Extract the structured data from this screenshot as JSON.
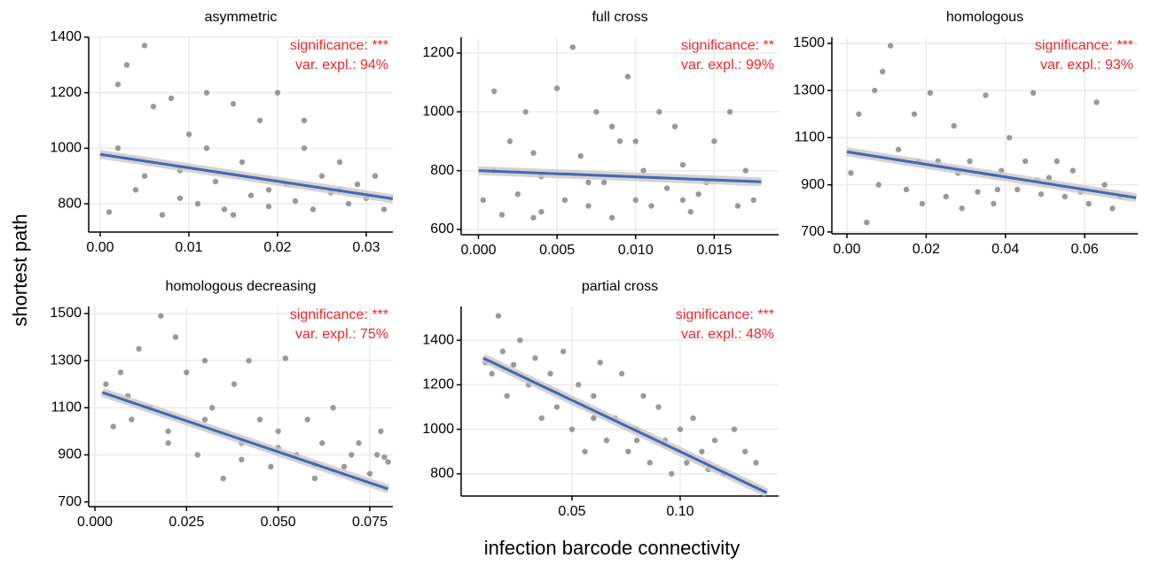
{
  "axis_labels": {
    "x": "infection barcode connectivity",
    "y": "shortest path"
  },
  "chart_data": [
    {
      "type": "scatter",
      "title": "asymmetric",
      "color": "#999999",
      "grid": true,
      "annotations": [
        "significance: ***",
        "var. expl.: 94%"
      ],
      "annotation_color": "#e8262b",
      "x": [
        0.001,
        0.002,
        0.003,
        0.004,
        0.005,
        0.006,
        0.007,
        0.008,
        0.009,
        0.01,
        0.011,
        0.012,
        0.013,
        0.014,
        0.015,
        0.016,
        0.017,
        0.018,
        0.019,
        0.02,
        0.021,
        0.022,
        0.023,
        0.024,
        0.025,
        0.026,
        0.027,
        0.028,
        0.029,
        0.03,
        0.031,
        0.032,
        0.002,
        0.005,
        0.009,
        0.012,
        0.015,
        0.019,
        0.023,
        0.027
      ],
      "y": [
        770,
        1230,
        1300,
        850,
        1370,
        1150,
        760,
        1180,
        920,
        1050,
        800,
        1200,
        880,
        780,
        1160,
        950,
        830,
        1100,
        790,
        1200,
        870,
        810,
        1000,
        780,
        900,
        840,
        950,
        800,
        870,
        820,
        900,
        780,
        1000,
        900,
        820,
        1000,
        760,
        850,
        1100,
        850
      ],
      "fit": {
        "color": "#4466b0",
        "x": [
          0.0,
          0.033
        ],
        "y": [
          978,
          818
        ]
      },
      "xlim": [
        -0.0013,
        0.033
      ],
      "ylim": [
        698,
        1400
      ],
      "xticks": [
        {
          "value": 0,
          "label": "0.00"
        },
        0.01,
        0.02,
        0.03
      ],
      "yticks": [
        800,
        1000,
        1200,
        1400
      ]
    },
    {
      "type": "scatter",
      "title": "full cross",
      "color": "#999999",
      "grid": true,
      "annotations": [
        "significance: **",
        "var. expl.: 99%"
      ],
      "annotation_color": "#e8262b",
      "x": [
        0.0003,
        0.001,
        0.0015,
        0.002,
        0.0025,
        0.003,
        0.0035,
        0.004,
        0.005,
        0.0055,
        0.006,
        0.0065,
        0.007,
        0.0075,
        0.008,
        0.0085,
        0.009,
        0.0095,
        0.01,
        0.0105,
        0.011,
        0.0115,
        0.012,
        0.0125,
        0.013,
        0.0135,
        0.014,
        0.015,
        0.016,
        0.017,
        0.0175,
        0.001,
        0.004,
        0.007,
        0.01,
        0.013,
        0.0035,
        0.0085,
        0.0145,
        0.0165
      ],
      "y": [
        700,
        1070,
        650,
        900,
        720,
        1000,
        640,
        780,
        1080,
        700,
        1220,
        850,
        680,
        1000,
        760,
        640,
        900,
        1120,
        700,
        800,
        680,
        1000,
        740,
        950,
        820,
        660,
        720,
        900,
        1000,
        800,
        700,
        800,
        660,
        760,
        900,
        700,
        860,
        950,
        760,
        680
      ],
      "fit": {
        "color": "#4466b0",
        "x": [
          0.0,
          0.018
        ],
        "y": [
          800,
          762
        ]
      },
      "xlim": [
        -0.0011,
        0.0191
      ],
      "ylim": [
        582,
        1254
      ],
      "xticks": [
        {
          "value": 0,
          "label": "0.000"
        },
        0.005,
        {
          "value": 0.01,
          "label": "0.010"
        },
        0.015
      ],
      "yticks": [
        600,
        800,
        1000,
        1200
      ]
    },
    {
      "type": "scatter",
      "title": "homologous",
      "color": "#999999",
      "grid": true,
      "annotations": [
        "significance: ***",
        "var. expl.: 93%"
      ],
      "annotation_color": "#e8262b",
      "x": [
        0.001,
        0.003,
        0.005,
        0.007,
        0.009,
        0.011,
        0.013,
        0.015,
        0.017,
        0.019,
        0.021,
        0.023,
        0.025,
        0.027,
        0.029,
        0.031,
        0.033,
        0.035,
        0.037,
        0.039,
        0.041,
        0.043,
        0.045,
        0.047,
        0.049,
        0.051,
        0.053,
        0.055,
        0.057,
        0.059,
        0.061,
        0.063,
        0.065,
        0.067,
        0.069,
        0.008,
        0.018,
        0.028,
        0.038,
        0.048
      ],
      "y": [
        950,
        1200,
        740,
        1300,
        1380,
        1490,
        1050,
        880,
        1200,
        820,
        1290,
        1000,
        850,
        1150,
        800,
        1000,
        870,
        1280,
        820,
        960,
        1100,
        880,
        1000,
        1290,
        860,
        930,
        1000,
        850,
        960,
        870,
        820,
        1250,
        900,
        800,
        850,
        900,
        1000,
        950,
        880,
        920
      ],
      "fit": {
        "color": "#4466b0",
        "x": [
          0.0,
          0.073
        ],
        "y": [
          1040,
          845
        ]
      },
      "xlim": [
        -0.0038,
        0.0734
      ],
      "ylim": [
        692,
        1526
      ],
      "xticks": [
        {
          "value": 0,
          "label": "0.00"
        },
        0.02,
        0.04,
        0.06
      ],
      "yticks": [
        700,
        900,
        1100,
        1300,
        1500
      ]
    },
    {
      "type": "scatter",
      "title": "homologous decreasing",
      "color": "#999999",
      "grid": true,
      "annotations": [
        "significance: ***",
        "var. expl.: 75%"
      ],
      "annotation_color": "#e8262b",
      "x": [
        0.003,
        0.005,
        0.007,
        0.009,
        0.012,
        0.015,
        0.018,
        0.02,
        0.022,
        0.025,
        0.028,
        0.03,
        0.032,
        0.035,
        0.038,
        0.04,
        0.042,
        0.045,
        0.048,
        0.05,
        0.052,
        0.055,
        0.058,
        0.06,
        0.062,
        0.065,
        0.068,
        0.07,
        0.072,
        0.075,
        0.078,
        0.08,
        0.077,
        0.079,
        0.01,
        0.02,
        0.03,
        0.04,
        0.05,
        0.06
      ],
      "y": [
        1200,
        1020,
        1250,
        1150,
        1350,
        1100,
        1490,
        1000,
        1400,
        1250,
        900,
        1300,
        1100,
        800,
        1200,
        950,
        1300,
        1050,
        850,
        1000,
        1310,
        900,
        1050,
        800,
        950,
        1100,
        850,
        900,
        950,
        820,
        1000,
        870,
        900,
        890,
        1050,
        950,
        1050,
        880,
        930,
        860
      ],
      "fit": {
        "color": "#4466b0",
        "x": [
          0.002,
          0.08
        ],
        "y": [
          1165,
          755
        ]
      },
      "xlim": [
        -0.0017,
        0.0813
      ],
      "ylim": [
        680,
        1530
      ],
      "xticks": [
        {
          "value": 0,
          "label": "0.000"
        },
        0.025,
        {
          "value": 0.05,
          "label": "0.050"
        },
        0.075
      ],
      "yticks": [
        700,
        900,
        1100,
        1300,
        1500
      ]
    },
    {
      "type": "scatter",
      "title": "partial cross",
      "color": "#999999",
      "grid": true,
      "annotations": [
        "significance: ***",
        "var. expl.: 48%"
      ],
      "annotation_color": "#e8262b",
      "x": [
        0.01,
        0.013,
        0.016,
        0.018,
        0.02,
        0.023,
        0.026,
        0.03,
        0.033,
        0.036,
        0.04,
        0.043,
        0.046,
        0.05,
        0.053,
        0.056,
        0.06,
        0.063,
        0.066,
        0.07,
        0.073,
        0.076,
        0.08,
        0.083,
        0.086,
        0.09,
        0.093,
        0.096,
        0.1,
        0.103,
        0.106,
        0.11,
        0.113,
        0.116,
        0.12,
        0.125,
        0.13,
        0.135,
        0.06,
        0.08
      ],
      "y": [
        1300,
        1250,
        1510,
        1350,
        1150,
        1290,
        1400,
        1200,
        1320,
        1050,
        1250,
        1100,
        1350,
        1000,
        1200,
        900,
        1150,
        1300,
        950,
        1050,
        1250,
        900,
        1000,
        1150,
        850,
        1100,
        950,
        800,
        1000,
        850,
        1050,
        900,
        820,
        950,
        800,
        1000,
        900,
        850,
        1050,
        950
      ],
      "fit": {
        "color": "#4466b0",
        "x": [
          0.009,
          0.14
        ],
        "y": [
          1320,
          715
        ]
      },
      "xlim": [
        -0.0012,
        0.1455
      ],
      "ylim": [
        700,
        1552
      ],
      "xticks": [
        0.05,
        {
          "value": 0.1,
          "label": "0.10"
        }
      ],
      "yticks": [
        800,
        1000,
        1200,
        1400
      ]
    }
  ]
}
